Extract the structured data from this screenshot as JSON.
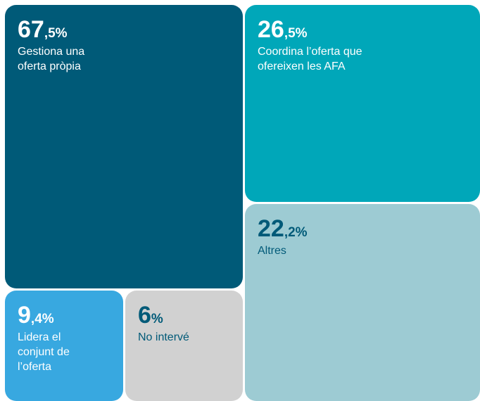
{
  "chart_data": {
    "type": "treemap",
    "categories": [
      "Gestiona una oferta pròpia",
      "Coordina l’oferta que ofereixen les AFA",
      "Altres",
      "Lidera el conjunt de l’oferta",
      "No intervé"
    ],
    "values": [
      67.5,
      26.5,
      22.2,
      9.4,
      6
    ],
    "value_labels": [
      "67,5%",
      "26,5%",
      "22,2%",
      "9,4%",
      "6%"
    ],
    "colors": [
      "#005a78",
      "#00a7b9",
      "#9dcbd3",
      "#38a8e0",
      "#d1d1d1"
    ]
  }
}
